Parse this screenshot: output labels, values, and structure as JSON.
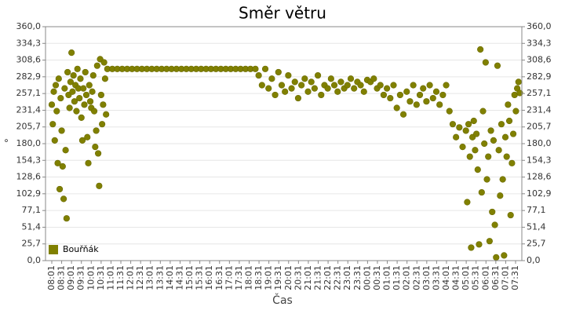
{
  "chart_data": {
    "type": "scatter",
    "title": "Směr větru",
    "x_label": "Čas",
    "y_label": "°",
    "categories": [
      "08:01",
      "08:31",
      "09:01",
      "09:31",
      "10:01",
      "10:31",
      "11:01",
      "11:31",
      "12:01",
      "12:31",
      "13:01",
      "13:31",
      "14:01",
      "14:31",
      "15:01",
      "15:31",
      "16:01",
      "16:31",
      "17:01",
      "17:31",
      "18:01",
      "18:31",
      "19:01",
      "19:31",
      "20:01",
      "20:31",
      "21:01",
      "21:31",
      "22:01",
      "22:31",
      "23:01",
      "23:31",
      "00:01",
      "00:31",
      "01:01",
      "01:31",
      "02:01",
      "02:31",
      "03:01",
      "03:31",
      "04:01",
      "04:31",
      "05:01",
      "05:31",
      "06:01",
      "06:31",
      "07:01",
      "07:31"
    ],
    "ylim": [
      0,
      360
    ],
    "yticks": [
      {
        "value": 0,
        "label": "0,0"
      },
      {
        "value": 25.7,
        "label": "25,7"
      },
      {
        "value": 51.4,
        "label": "51,4"
      },
      {
        "value": 77.1,
        "label": "77,1"
      },
      {
        "value": 102.9,
        "label": "102,9"
      },
      {
        "value": 128.6,
        "label": "128,6"
      },
      {
        "value": 154.3,
        "label": "154,3"
      },
      {
        "value": 180,
        "label": "180,0"
      },
      {
        "value": 205.7,
        "label": "205,7"
      },
      {
        "value": 231.4,
        "label": "231,4"
      },
      {
        "value": 257.1,
        "label": "257,1"
      },
      {
        "value": 282.9,
        "label": "282,9"
      },
      {
        "value": 308.6,
        "label": "308,6"
      },
      {
        "value": 334.3,
        "label": "334,3"
      },
      {
        "value": 360,
        "label": "360,0"
      }
    ],
    "grid": true,
    "legend": "bottom-left",
    "series": [
      {
        "name": "Bouřňák",
        "color": "#808000",
        "x": [
          "08:01",
          "08:04",
          "08:07",
          "08:10",
          "08:13",
          "08:16",
          "08:19",
          "08:22",
          "08:25",
          "08:28",
          "08:31",
          "08:34",
          "08:37",
          "08:40",
          "08:43",
          "08:46",
          "08:49",
          "08:52",
          "08:55",
          "08:58",
          "09:01",
          "09:04",
          "09:07",
          "09:10",
          "09:13",
          "09:16",
          "09:19",
          "09:22",
          "09:25",
          "09:28",
          "09:31",
          "09:34",
          "09:37",
          "09:40",
          "09:43",
          "09:46",
          "09:49",
          "09:52",
          "09:55",
          "09:58",
          "10:01",
          "10:04",
          "10:07",
          "10:10",
          "10:13",
          "10:16",
          "10:19",
          "10:22",
          "10:25",
          "10:28",
          "10:31",
          "10:34",
          "10:37",
          "10:40",
          "10:43",
          "10:46",
          "10:50",
          "11:05",
          "11:20",
          "11:35",
          "11:50",
          "12:05",
          "12:20",
          "12:35",
          "12:50",
          "13:05",
          "13:20",
          "13:35",
          "13:50",
          "14:05",
          "14:20",
          "14:35",
          "14:50",
          "15:05",
          "15:20",
          "15:35",
          "15:50",
          "16:05",
          "16:20",
          "16:35",
          "16:50",
          "17:05",
          "17:20",
          "17:35",
          "17:50",
          "18:05",
          "18:20",
          "18:30",
          "18:40",
          "18:50",
          "19:00",
          "19:10",
          "19:20",
          "19:30",
          "19:40",
          "19:50",
          "20:00",
          "20:10",
          "20:20",
          "20:30",
          "20:40",
          "20:50",
          "21:00",
          "21:10",
          "21:20",
          "21:30",
          "21:40",
          "21:50",
          "22:00",
          "22:10",
          "22:20",
          "22:30",
          "22:40",
          "22:50",
          "23:00",
          "23:10",
          "23:20",
          "23:30",
          "23:40",
          "23:50",
          "00:00",
          "00:10",
          "00:20",
          "00:30",
          "00:40",
          "00:50",
          "01:00",
          "01:10",
          "01:20",
          "01:30",
          "01:40",
          "01:50",
          "02:00",
          "02:10",
          "02:20",
          "02:30",
          "02:40",
          "02:50",
          "03:00",
          "03:10",
          "03:20",
          "03:30",
          "03:40",
          "03:50",
          "04:00",
          "04:10",
          "04:20",
          "04:30",
          "04:40",
          "04:50",
          "05:00",
          "05:04",
          "05:08",
          "05:12",
          "05:16",
          "05:20",
          "05:24",
          "05:28",
          "05:32",
          "05:36",
          "05:40",
          "05:44",
          "05:48",
          "05:52",
          "05:56",
          "06:00",
          "06:04",
          "06:08",
          "06:12",
          "06:16",
          "06:20",
          "06:24",
          "06:28",
          "06:32",
          "06:36",
          "06:40",
          "06:44",
          "06:48",
          "06:52",
          "06:56",
          "07:00",
          "07:04",
          "07:08",
          "07:12",
          "07:16",
          "07:20",
          "07:24",
          "07:28",
          "07:32",
          "07:36",
          "07:40",
          "07:44"
        ],
        "values": [
          240,
          210,
          260,
          185,
          270,
          230,
          150,
          280,
          110,
          250,
          200,
          145,
          95,
          265,
          170,
          65,
          290,
          255,
          235,
          275,
          320,
          260,
          285,
          245,
          270,
          230,
          295,
          265,
          250,
          280,
          220,
          185,
          265,
          240,
          290,
          255,
          190,
          150,
          270,
          245,
          235,
          260,
          285,
          230,
          175,
          200,
          300,
          165,
          115,
          310,
          255,
          210,
          240,
          305,
          280,
          225,
          295,
          295,
          295,
          295,
          295,
          295,
          295,
          295,
          295,
          295,
          295,
          295,
          295,
          295,
          295,
          295,
          295,
          295,
          295,
          295,
          295,
          295,
          295,
          295,
          295,
          295,
          295,
          295,
          295,
          295,
          295,
          285,
          270,
          295,
          265,
          280,
          255,
          290,
          270,
          260,
          285,
          265,
          275,
          250,
          270,
          280,
          260,
          275,
          265,
          285,
          255,
          270,
          265,
          280,
          270,
          260,
          275,
          265,
          270,
          280,
          265,
          275,
          270,
          260,
          278,
          275,
          280,
          265,
          270,
          255,
          265,
          250,
          270,
          235,
          255,
          225,
          260,
          245,
          270,
          240,
          255,
          265,
          245,
          270,
          250,
          260,
          240,
          255,
          270,
          230,
          210,
          190,
          205,
          175,
          200,
          90,
          210,
          160,
          20,
          190,
          215,
          170,
          195,
          140,
          25,
          325,
          105,
          230,
          180,
          305,
          125,
          160,
          30,
          200,
          75,
          185,
          55,
          5,
          300,
          170,
          100,
          210,
          125,
          8,
          190,
          160,
          240,
          215,
          70,
          150,
          195,
          255,
          230,
          265,
          275,
          258
        ]
      }
    ]
  }
}
